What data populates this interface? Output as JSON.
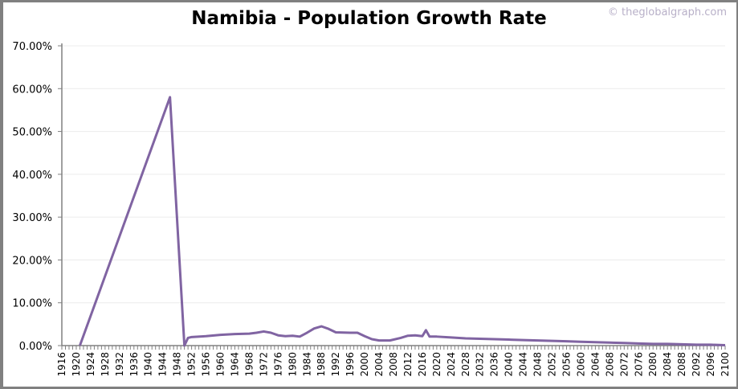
{
  "chart_data": {
    "type": "line",
    "title": "Namibia - Population Growth Rate",
    "watermark": "© theglobalgraph.com",
    "xlabel": "",
    "ylabel": "",
    "xlim": [
      1916,
      2100
    ],
    "ylim": [
      0,
      70
    ],
    "x_ticks": [
      1916,
      1920,
      1924,
      1928,
      1932,
      1936,
      1940,
      1944,
      1948,
      1952,
      1956,
      1960,
      1964,
      1968,
      1972,
      1976,
      1980,
      1984,
      1988,
      1992,
      1996,
      2000,
      2004,
      2008,
      2012,
      2016,
      2020,
      2024,
      2028,
      2032,
      2036,
      2040,
      2044,
      2048,
      2052,
      2056,
      2060,
      2064,
      2068,
      2072,
      2076,
      2080,
      2084,
      2088,
      2092,
      2096,
      2100
    ],
    "y_ticks": [
      "0.00%",
      "10.00%",
      "20.00%",
      "30.00%",
      "40.00%",
      "50.00%",
      "60.00%",
      "70.00%"
    ],
    "y_tick_values": [
      0,
      10,
      20,
      30,
      40,
      50,
      60,
      70
    ],
    "grid": "horizontal",
    "line_color": "#8064a2",
    "series": [
      {
        "x": [
          1921,
          1946,
          1950,
          1951,
          1952,
          1956,
          1960,
          1964,
          1968,
          1970,
          1972,
          1974,
          1976,
          1978,
          1980,
          1982,
          1984,
          1986,
          1988,
          1990,
          1992,
          1996,
          1998,
          2000,
          2002,
          2004,
          2007,
          2010,
          2012,
          2014,
          2016,
          2017,
          2018,
          2020,
          2024,
          2028,
          2032,
          2036,
          2040,
          2044,
          2048,
          2052,
          2056,
          2060,
          2064,
          2068,
          2072,
          2076,
          2080,
          2084,
          2088,
          2092,
          2096,
          2100
        ],
        "y": [
          0,
          58,
          0,
          1.8,
          2.0,
          2.2,
          2.5,
          2.7,
          2.8,
          3.0,
          3.3,
          3.0,
          2.4,
          2.2,
          2.3,
          2.1,
          3.0,
          4.0,
          4.5,
          3.9,
          3.1,
          3.0,
          3.0,
          2.2,
          1.5,
          1.2,
          1.2,
          1.8,
          2.3,
          2.4,
          2.2,
          3.6,
          2.1,
          2.1,
          1.9,
          1.7,
          1.6,
          1.5,
          1.4,
          1.3,
          1.2,
          1.1,
          1.0,
          0.9,
          0.8,
          0.7,
          0.6,
          0.5,
          0.4,
          0.4,
          0.3,
          0.2,
          0.2,
          0.1
        ]
      }
    ]
  }
}
